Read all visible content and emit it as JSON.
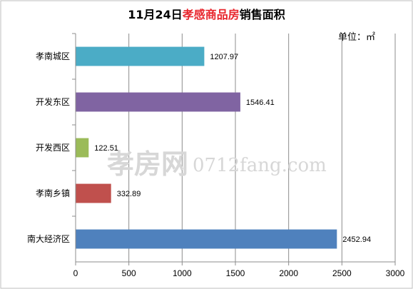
{
  "chart_data": {
    "type": "bar",
    "orientation": "horizontal",
    "title_parts": [
      {
        "text": "11月24日",
        "color": "#000000"
      },
      {
        "text": "孝感商品房",
        "color": "#e8262d"
      },
      {
        "text": "销售面积",
        "color": "#000000"
      }
    ],
    "unit_label": "单位：㎡",
    "categories": [
      "孝南城区",
      "开发东区",
      "开发西区",
      "孝南乡镇",
      "南大经济区"
    ],
    "values": [
      1207.97,
      1546.41,
      122.51,
      332.89,
      2452.94
    ],
    "value_labels": [
      "1207.97",
      "1546.41",
      "122.51",
      "332.89",
      "2452.94"
    ],
    "bar_colors": [
      "#4bacc6",
      "#8064a2",
      "#9bbb59",
      "#c0504d",
      "#4f81bd"
    ],
    "xlim": [
      0,
      3000
    ],
    "x_ticks": [
      0,
      500,
      1000,
      1500,
      2000,
      2500,
      3000
    ],
    "grid": true,
    "legend": "none"
  },
  "watermark": {
    "logo": "孝房网",
    "url": "0712fang.com"
  }
}
